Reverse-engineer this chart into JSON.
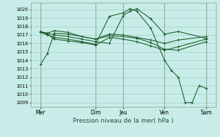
{
  "bg_color": "#c8ede8",
  "grid_color": "#a8d4ce",
  "line_color": "#1a5c2a",
  "vline_color": "#8aaa9a",
  "title": "Pression niveau de la mer( hPa )",
  "ylim": [
    1008.5,
    1020.8
  ],
  "yticks": [
    1009,
    1010,
    1011,
    1012,
    1013,
    1014,
    1015,
    1016,
    1017,
    1018,
    1019,
    1020
  ],
  "xlim": [
    -0.2,
    13.2
  ],
  "x_day_labels": [
    "Mer",
    "Dim",
    "Jeu",
    "Ven",
    "Sam"
  ],
  "x_day_positions": [
    0.5,
    4.5,
    6.5,
    9.5,
    12.5
  ],
  "x_vline_positions": [
    0.5,
    4.5,
    6.5,
    9.5,
    12.5
  ],
  "series": [
    {
      "x": [
        0.5,
        1.0,
        1.5,
        2.5,
        3.5,
        4.5,
        5.5,
        6.5,
        7.5,
        8.5,
        9.5,
        10.5,
        12.5
      ],
      "y": [
        1013.5,
        1014.8,
        1017.2,
        1017.1,
        1016.8,
        1016.5,
        1016.9,
        1016.8,
        1016.6,
        1016.1,
        1015.3,
        1015.2,
        1016.2
      ]
    },
    {
      "x": [
        0.5,
        1.0,
        1.5,
        2.5,
        3.5,
        4.5,
        5.5,
        6.5,
        7.5,
        8.5,
        9.5,
        10.5,
        12.5
      ],
      "y": [
        1017.3,
        1017.2,
        1017.5,
        1017.3,
        1016.8,
        1016.5,
        1017.1,
        1017.0,
        1016.7,
        1016.4,
        1016.0,
        1016.4,
        1016.8
      ]
    },
    {
      "x": [
        0.5,
        1.0,
        1.5,
        2.5,
        3.5,
        4.5,
        5.5,
        6.5,
        7.5,
        8.5,
        9.5,
        10.5,
        12.5
      ],
      "y": [
        1017.4,
        1017.1,
        1016.5,
        1016.3,
        1016.1,
        1015.8,
        1016.7,
        1016.5,
        1016.2,
        1015.7,
        1015.2,
        1015.6,
        1016.5
      ]
    },
    {
      "x": [
        0.5,
        1.5,
        2.5,
        3.5,
        4.5,
        5.5,
        6.5,
        7.0,
        7.5,
        8.5,
        9.5,
        10.5,
        12.5
      ],
      "y": [
        1017.4,
        1017.0,
        1016.8,
        1016.5,
        1016.2,
        1016.0,
        1019.3,
        1019.8,
        1020.1,
        1018.9,
        1017.1,
        1017.4,
        1016.6
      ]
    },
    {
      "x": [
        0.5,
        1.0,
        1.5,
        2.5,
        3.5,
        4.5,
        5.5,
        6.5,
        7.0,
        7.5,
        8.5,
        9.5,
        10.0,
        10.5,
        11.0,
        11.5,
        12.0,
        12.5
      ],
      "y": [
        1017.3,
        1017.0,
        1016.7,
        1016.5,
        1016.2,
        1015.9,
        1019.2,
        1019.6,
        1020.1,
        1019.8,
        1017.8,
        1014.0,
        1012.8,
        1012.0,
        1009.0,
        1009.0,
        1011.0,
        1010.7
      ]
    }
  ]
}
